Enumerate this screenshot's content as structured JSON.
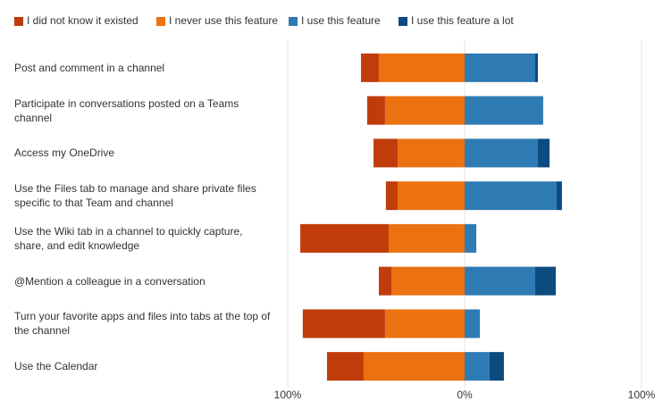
{
  "chart_data": {
    "type": "diverging-bar",
    "categories": [
      "Post and comment in a channel",
      "Participate in conversations posted on a Teams channel",
      "Access my OneDrive",
      "Use the Files tab to manage and share private files specific to that Team and channel",
      "Use the Wiki tab in a channel to quickly capture, share, and edit knowledge",
      "@Mention a colleague in a conversation",
      "Turn your favorite apps and files into tabs at the top of the channel",
      "Use the Calendar"
    ],
    "series": [
      {
        "name": "I did not know it existed",
        "color": "#c03c0b",
        "values": [
          -10.1,
          -10.1,
          -13.6,
          -6.6,
          -50,
          -7.1,
          -46.5,
          -20.7
        ]
      },
      {
        "name": "I never use this feature",
        "color": "#ec7211",
        "values": [
          -48.5,
          -45,
          -37.9,
          -37.9,
          -42.9,
          -41.4,
          -45,
          -57.1
        ]
      },
      {
        "name": "I use this feature",
        "color": "#2e7bb4",
        "values": [
          39.9,
          44.4,
          41.4,
          52,
          6.6,
          39.9,
          8.6,
          14.1
        ]
      },
      {
        "name": "I use this feature a lot",
        "color": "#0c4a80",
        "values": [
          1.5,
          0,
          6.6,
          3,
          0,
          11.6,
          0,
          8.1
        ]
      }
    ],
    "xlim": [
      -100,
      100
    ],
    "xticks": [
      {
        "value": -100,
        "label": "100%"
      },
      {
        "value": 0,
        "label": "0%"
      },
      {
        "value": 100,
        "label": "100%"
      }
    ],
    "grid": true
  }
}
